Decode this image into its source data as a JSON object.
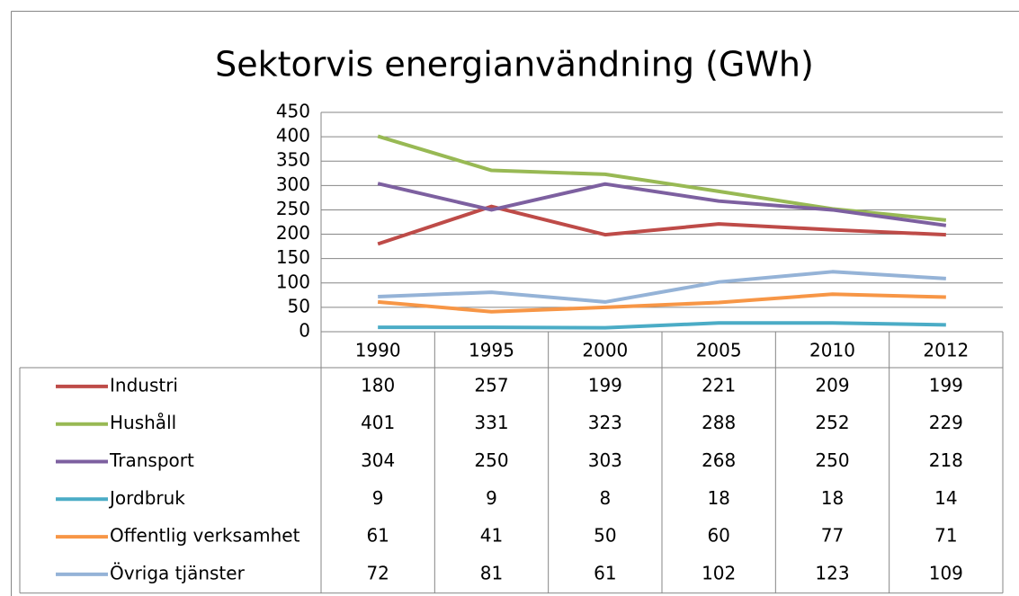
{
  "chart_data": {
    "type": "line",
    "title": "Sektorvis energianvändning (GWh)",
    "categories": [
      "1990",
      "1995",
      "2000",
      "2005",
      "2010",
      "2012"
    ],
    "series": [
      {
        "name": "Industri",
        "color": "#be4b48",
        "values": [
          180,
          257,
          199,
          221,
          209,
          199
        ]
      },
      {
        "name": "Hushåll",
        "color": "#98b954",
        "values": [
          401,
          331,
          323,
          288,
          252,
          229
        ]
      },
      {
        "name": "Transport",
        "color": "#7d60a0",
        "values": [
          304,
          250,
          303,
          268,
          250,
          218
        ]
      },
      {
        "name": "Jordbruk",
        "color": "#4bacc6",
        "values": [
          9,
          9,
          8,
          18,
          18,
          14
        ]
      },
      {
        "name": "Offentlig verksamhet",
        "color": "#f79646",
        "values": [
          61,
          41,
          50,
          60,
          77,
          71
        ]
      },
      {
        "name": "Övriga tjänster",
        "color": "#95b3d7",
        "values": [
          72,
          81,
          61,
          102,
          123,
          109
        ]
      }
    ],
    "ylim": [
      0,
      450
    ],
    "yticks": [
      0,
      50,
      100,
      150,
      200,
      250,
      300,
      350,
      400,
      450
    ],
    "grid": true
  }
}
